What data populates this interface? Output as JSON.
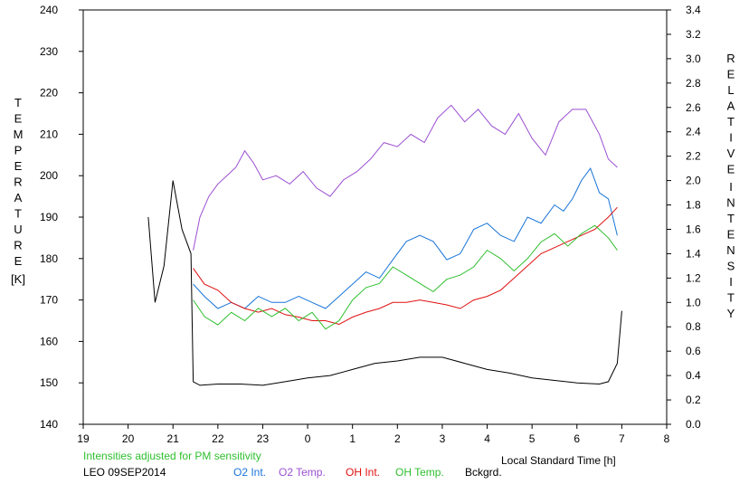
{
  "chart_data": {
    "type": "line",
    "title": "",
    "xlabel": "Local Standard Time [h]",
    "ylabel_left_letters": [
      "T",
      "E",
      "M",
      "P",
      "E",
      "R",
      "A",
      "T",
      "U",
      "R",
      "E"
    ],
    "ylabel_left_unit": "[K]",
    "ylabel_right_word1": [
      "R",
      "E",
      "L",
      "A",
      "T",
      "I",
      "V",
      "E"
    ],
    "ylabel_right_word2": [
      "I",
      "N",
      "T",
      "E",
      "N",
      "S",
      "I",
      "T",
      "Y"
    ],
    "x_ticks": [
      "19",
      "20",
      "21",
      "22",
      "23",
      "0",
      "1",
      "2",
      "3",
      "4",
      "5",
      "6",
      "7",
      "8"
    ],
    "y_left_ticks": [
      "140",
      "150",
      "160",
      "170",
      "180",
      "190",
      "200",
      "210",
      "220",
      "230",
      "240"
    ],
    "y_right_ticks": [
      "0.0",
      "0.2",
      "0.4",
      "0.6",
      "0.8",
      "1.0",
      "1.2",
      "1.4",
      "1.6",
      "1.8",
      "2.0",
      "2.2",
      "2.4",
      "2.6",
      "2.8",
      "3.0",
      "3.2",
      "3.4"
    ],
    "xlim": [
      19,
      32
    ],
    "ylim_left": [
      140,
      240
    ],
    "ylim_right": [
      0.0,
      3.4
    ],
    "grid": false,
    "legend_position": "bottom",
    "note": "Intensities adjusted for PM sensitivity",
    "station_date": "LEO 09SEP2014",
    "series": [
      {
        "name": "O2 Int.",
        "axis": "right",
        "color": "#1874d8",
        "x": [
          21.45,
          21.7,
          22.0,
          22.3,
          22.6,
          22.9,
          23.2,
          23.5,
          23.8,
          24.1,
          24.4,
          24.7,
          25.0,
          25.3,
          25.6,
          25.9,
          26.2,
          26.5,
          26.8,
          27.1,
          27.4,
          27.7,
          28.0,
          28.3,
          28.6,
          28.9,
          29.2,
          29.5,
          29.7,
          29.9,
          30.1,
          30.3,
          30.5,
          30.7,
          30.9
        ],
        "y": [
          1.15,
          1.05,
          0.95,
          1.0,
          0.95,
          1.05,
          1.0,
          1.0,
          1.05,
          1.0,
          0.95,
          1.05,
          1.15,
          1.25,
          1.2,
          1.35,
          1.5,
          1.55,
          1.5,
          1.35,
          1.4,
          1.6,
          1.65,
          1.55,
          1.5,
          1.7,
          1.65,
          1.8,
          1.75,
          1.85,
          2.0,
          2.1,
          1.9,
          1.85,
          1.55
        ]
      },
      {
        "name": "O2 Temp.",
        "axis": "left",
        "color": "#9b4fd2",
        "x": [
          21.45,
          21.6,
          21.8,
          22.0,
          22.2,
          22.4,
          22.6,
          22.8,
          23.0,
          23.3,
          23.6,
          23.9,
          24.2,
          24.5,
          24.8,
          25.1,
          25.4,
          25.7,
          26.0,
          26.3,
          26.6,
          26.9,
          27.2,
          27.5,
          27.8,
          28.1,
          28.4,
          28.7,
          29.0,
          29.3,
          29.6,
          29.9,
          30.2,
          30.5,
          30.7,
          30.9
        ],
        "y": [
          182,
          190,
          195,
          198,
          200,
          202,
          206,
          203,
          199,
          200,
          198,
          201,
          197,
          195,
          199,
          201,
          204,
          208,
          207,
          210,
          208,
          214,
          217,
          213,
          216,
          212,
          210,
          215,
          209,
          205,
          213,
          216,
          216,
          210,
          204,
          202
        ]
      },
      {
        "name": "OH Int.",
        "axis": "right",
        "color": "#e01010",
        "x": [
          21.45,
          21.7,
          22.0,
          22.3,
          22.6,
          22.9,
          23.2,
          23.5,
          23.8,
          24.1,
          24.4,
          24.7,
          25.0,
          25.3,
          25.6,
          25.9,
          26.2,
          26.5,
          26.8,
          27.1,
          27.4,
          27.7,
          28.0,
          28.3,
          28.6,
          28.9,
          29.2,
          29.5,
          29.8,
          30.1,
          30.4,
          30.7,
          30.9
        ],
        "y": [
          1.28,
          1.15,
          1.1,
          1.0,
          0.95,
          0.92,
          0.95,
          0.9,
          0.88,
          0.85,
          0.85,
          0.82,
          0.88,
          0.92,
          0.95,
          1.0,
          1.0,
          1.02,
          1.0,
          0.98,
          0.95,
          1.02,
          1.05,
          1.1,
          1.2,
          1.3,
          1.4,
          1.45,
          1.5,
          1.55,
          1.6,
          1.7,
          1.78
        ]
      },
      {
        "name": "OH Temp.",
        "axis": "left",
        "color": "#2fbf2f",
        "x": [
          21.45,
          21.7,
          22.0,
          22.3,
          22.6,
          22.9,
          23.2,
          23.5,
          23.8,
          24.1,
          24.4,
          24.7,
          25.0,
          25.3,
          25.6,
          25.9,
          26.2,
          26.5,
          26.8,
          27.1,
          27.4,
          27.7,
          28.0,
          28.3,
          28.6,
          28.9,
          29.2,
          29.5,
          29.8,
          30.1,
          30.4,
          30.7,
          30.9
        ],
        "y": [
          170,
          166,
          164,
          167,
          165,
          168,
          166,
          168,
          165,
          167,
          163,
          165,
          170,
          173,
          174,
          178,
          176,
          174,
          172,
          175,
          176,
          178,
          182,
          180,
          177,
          180,
          184,
          186,
          183,
          186,
          188,
          185,
          182
        ]
      },
      {
        "name": "Bckgrd.",
        "axis": "right",
        "color": "#000000",
        "x": [
          20.45,
          20.6,
          20.8,
          21.0,
          21.2,
          21.4,
          21.45,
          21.6,
          22.0,
          22.5,
          23.0,
          23.5,
          24.0,
          24.5,
          25.0,
          25.5,
          26.0,
          26.5,
          27.0,
          27.5,
          28.0,
          28.5,
          29.0,
          29.5,
          30.0,
          30.5,
          30.7,
          30.9,
          31.0
        ],
        "y": [
          1.7,
          1.0,
          1.3,
          2.0,
          1.6,
          1.4,
          0.35,
          0.32,
          0.33,
          0.33,
          0.32,
          0.35,
          0.38,
          0.4,
          0.45,
          0.5,
          0.52,
          0.55,
          0.55,
          0.5,
          0.45,
          0.42,
          0.38,
          0.36,
          0.34,
          0.33,
          0.35,
          0.5,
          0.93
        ]
      }
    ]
  }
}
